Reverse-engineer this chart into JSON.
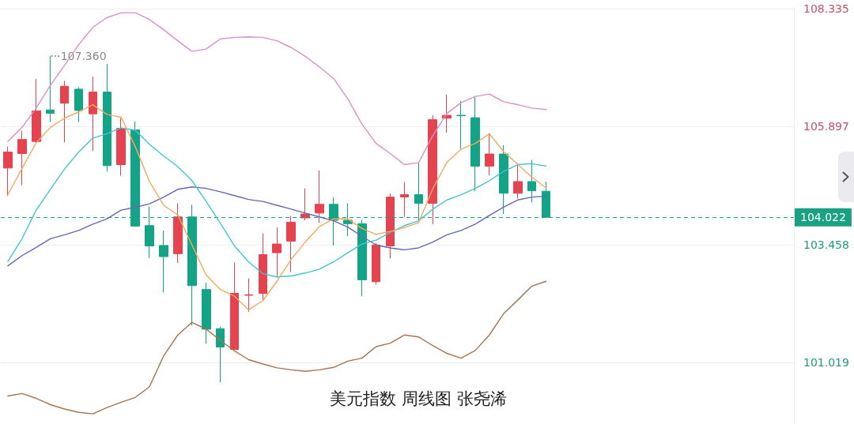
{
  "chart_data": {
    "type": "candlestick",
    "categories": [
      null,
      null,
      null,
      null,
      null,
      null,
      null,
      null,
      null,
      null,
      null,
      null,
      null,
      null,
      null,
      null,
      null,
      null,
      null,
      null,
      null,
      null,
      null,
      null,
      null,
      null,
      null,
      null,
      null,
      null,
      null,
      null,
      null,
      null,
      null,
      null,
      null,
      null,
      null
    ],
    "ohlc": [
      [
        105.04,
        105.48,
        104.46,
        105.37
      ],
      [
        105.34,
        105.81,
        104.69,
        105.63
      ],
      [
        105.59,
        106.88,
        105.55,
        106.22
      ],
      [
        106.24,
        107.36,
        105.99,
        106.17
      ],
      [
        106.38,
        106.84,
        105.57,
        106.73
      ],
      [
        106.67,
        106.71,
        105.99,
        106.23
      ],
      [
        106.16,
        106.93,
        105.39,
        106.61
      ],
      [
        106.61,
        107.19,
        104.97,
        105.09
      ],
      [
        105.11,
        106.07,
        104.88,
        105.86
      ],
      [
        105.83,
        106.0,
        103.84,
        103.84
      ],
      [
        103.85,
        104.24,
        103.18,
        103.43
      ],
      [
        103.44,
        103.75,
        102.47,
        103.21
      ],
      [
        103.27,
        104.31,
        103.08,
        104.03
      ],
      [
        104.03,
        104.28,
        101.79,
        102.61
      ],
      [
        102.53,
        102.67,
        101.41,
        101.71
      ],
      [
        101.72,
        101.76,
        100.61,
        101.34
      ],
      [
        101.29,
        103.09,
        101.29,
        102.45
      ],
      [
        102.41,
        102.76,
        102.07,
        102.42
      ],
      [
        102.45,
        103.69,
        102.3,
        103.25
      ],
      [
        103.29,
        103.81,
        102.78,
        103.47
      ],
      [
        103.53,
        104.05,
        102.89,
        103.92
      ],
      [
        104.01,
        104.62,
        103.96,
        104.09
      ],
      [
        104.11,
        104.99,
        103.91,
        104.29
      ],
      [
        104.29,
        104.43,
        103.44,
        103.96
      ],
      [
        103.96,
        104.31,
        103.63,
        103.89
      ],
      [
        103.89,
        103.97,
        102.39,
        102.73
      ],
      [
        102.69,
        103.49,
        102.63,
        103.45
      ],
      [
        103.43,
        104.52,
        103.17,
        104.44
      ],
      [
        104.44,
        104.75,
        104.03,
        104.49
      ],
      [
        104.49,
        105.15,
        103.92,
        104.31
      ],
      [
        104.31,
        106.13,
        103.88,
        106.04
      ],
      [
        106.07,
        106.56,
        105.77,
        106.13
      ],
      [
        106.13,
        106.43,
        105.44,
        106.12
      ],
      [
        106.08,
        106.52,
        104.56,
        105.08
      ],
      [
        105.08,
        105.76,
        104.89,
        105.33
      ],
      [
        105.33,
        105.51,
        104.09,
        104.52
      ],
      [
        104.52,
        105.12,
        104.41,
        104.76
      ],
      [
        104.76,
        105.21,
        104.33,
        104.57
      ],
      [
        104.56,
        104.76,
        104.022,
        104.022
      ]
    ],
    "colors": [
      "#e5434f",
      "#e5434f",
      "#e5434f",
      "#13a386",
      "#e5434f",
      "#13a386",
      "#e5434f",
      "#13a386",
      "#e5434f",
      "#13a386",
      "#13a386",
      "#13a386",
      "#e5434f",
      "#13a386",
      "#13a386",
      "#13a386",
      "#e5434f",
      "#e5434f",
      "#e5434f",
      "#e5434f",
      "#e5434f",
      "#e5434f",
      "#e5434f",
      "#13a386",
      "#13a386",
      "#13a386",
      "#e5434f",
      "#e5434f",
      "#e5434f",
      "#13a386",
      "#e5434f",
      "#e5434f",
      "#13a386",
      "#13a386",
      "#e5434f",
      "#13a386",
      "#e5434f",
      "#13a386",
      "#13a386"
    ],
    "series": [
      {
        "type": "line",
        "color": "#d990c8",
        "values": [
          105.59,
          105.88,
          106.28,
          106.75,
          107.16,
          107.59,
          107.95,
          108.15,
          108.25,
          108.25,
          108.11,
          107.9,
          107.67,
          107.45,
          107.5,
          107.71,
          107.74,
          107.75,
          107.74,
          107.67,
          107.53,
          107.35,
          107.13,
          106.89,
          106.47,
          105.95,
          105.55,
          105.34,
          105.11,
          105.15,
          105.71,
          106.17,
          106.39,
          106.52,
          106.57,
          106.41,
          106.35,
          106.28,
          106.25
        ]
      },
      {
        "type": "line",
        "color": "#a8734f",
        "values": [
          100.33,
          100.38,
          100.28,
          100.15,
          100.06,
          99.99,
          99.96,
          100.09,
          100.2,
          100.3,
          100.52,
          101.16,
          101.59,
          101.85,
          101.71,
          101.48,
          101.26,
          101.08,
          100.99,
          100.91,
          100.87,
          100.84,
          100.87,
          100.92,
          101.05,
          101.11,
          101.35,
          101.42,
          101.59,
          101.55,
          101.37,
          101.21,
          101.11,
          101.27,
          101.59,
          102.03,
          102.31,
          102.6,
          102.7
        ]
      },
      {
        "type": "line",
        "color": "#6467b8",
        "values": [
          103.02,
          103.23,
          103.4,
          103.58,
          103.66,
          103.75,
          103.88,
          103.99,
          104.17,
          104.23,
          104.3,
          104.44,
          104.6,
          104.65,
          104.62,
          104.55,
          104.47,
          104.39,
          104.35,
          104.27,
          104.19,
          104.11,
          104.03,
          103.95,
          103.82,
          103.63,
          103.45,
          103.39,
          103.35,
          103.39,
          103.51,
          103.66,
          103.75,
          103.88,
          104.06,
          104.23,
          104.38,
          104.44,
          104.46
        ]
      },
      {
        "type": "line",
        "color": "#45c3d1",
        "values": [
          103.11,
          103.58,
          104.17,
          104.6,
          105.02,
          105.37,
          105.66,
          105.75,
          105.87,
          105.82,
          105.53,
          105.29,
          105.07,
          104.78,
          104.35,
          103.9,
          103.43,
          103.1,
          102.86,
          102.79,
          102.81,
          102.87,
          102.95,
          103.1,
          103.29,
          103.47,
          103.55,
          103.71,
          103.85,
          103.95,
          104.19,
          104.38,
          104.49,
          104.62,
          104.78,
          104.97,
          105.11,
          105.13,
          105.08
        ]
      },
      {
        "type": "line",
        "color": "#f4a85e",
        "values": [
          104.49,
          105.03,
          105.56,
          105.88,
          106.07,
          106.2,
          106.35,
          106.15,
          106.09,
          105.48,
          104.76,
          104.27,
          104.07,
          103.45,
          102.83,
          102.53,
          102.39,
          102.11,
          102.3,
          102.7,
          103.15,
          103.51,
          103.83,
          103.99,
          103.99,
          103.79,
          103.67,
          103.73,
          103.81,
          103.91,
          104.61,
          105.16,
          105.43,
          105.55,
          105.75,
          105.38,
          105.12,
          104.85,
          104.63
        ]
      }
    ],
    "ylim": [
      99.75,
      108.35
    ],
    "yticks": [
      101.019,
      103.458,
      105.897,
      108.335
    ],
    "ref_lines": [
      {
        "axis": "y",
        "value": 104.022,
        "label": "104.022",
        "color": "#1aa083",
        "line_style": "dashed"
      }
    ],
    "annotations": [
      "107.360",
      "美元指数 周线图 张尧浠"
    ],
    "grid": "y",
    "tick_labels": "y",
    "marker": "none",
    "line_style": "solid"
  }
}
